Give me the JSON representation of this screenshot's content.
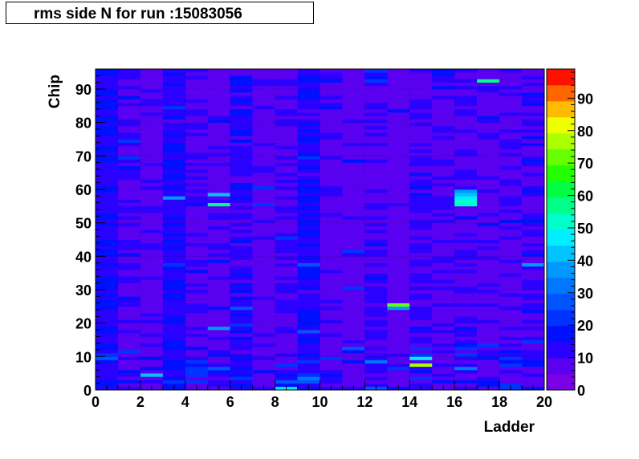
{
  "chart_data": {
    "type": "heatmap",
    "title": "rms side N for run :15083056",
    "xlabel": "Ladder",
    "ylabel": "Chip",
    "xlim": [
      0,
      20
    ],
    "ylim": [
      0,
      96
    ],
    "x_ticks": [
      0,
      2,
      4,
      6,
      8,
      10,
      12,
      14,
      16,
      18,
      20
    ],
    "y_ticks": [
      0,
      10,
      20,
      30,
      40,
      50,
      60,
      70,
      80,
      90
    ],
    "z_range": [
      0,
      99
    ],
    "z_ticks": [
      0,
      10,
      20,
      30,
      40,
      50,
      60,
      70,
      80,
      90
    ],
    "colorbar": "right",
    "grid": true,
    "n_columns": 20,
    "n_rows": 96,
    "typical_value_range": [
      5,
      20
    ],
    "notable_cells": [
      {
        "ladder": 13,
        "chip": 25,
        "value": 70
      },
      {
        "ladder": 14,
        "chip": 7,
        "value": 75
      },
      {
        "ladder": 14,
        "chip": 9,
        "value": 45
      },
      {
        "ladder": 16,
        "chip": 55,
        "value": 50
      },
      {
        "ladder": 16,
        "chip": 56,
        "value": 50
      },
      {
        "ladder": 16,
        "chip": 57,
        "value": 48
      },
      {
        "ladder": 16,
        "chip": 58,
        "value": 40
      },
      {
        "ladder": 16,
        "chip": 59,
        "value": 35
      },
      {
        "ladder": 17,
        "chip": 92,
        "value": 55
      },
      {
        "ladder": 5,
        "chip": 55,
        "value": 55
      },
      {
        "ladder": 5,
        "chip": 58,
        "value": 40
      },
      {
        "ladder": 3,
        "chip": 57,
        "value": 38
      },
      {
        "ladder": 2,
        "chip": 4,
        "value": 40
      },
      {
        "ladder": 8,
        "chip": 0,
        "value": 45
      },
      {
        "ladder": 13,
        "chip": 24,
        "value": 35
      },
      {
        "ladder": 16,
        "chip": 6,
        "value": 30
      },
      {
        "ladder": 5,
        "chip": 18,
        "value": 35
      },
      {
        "ladder": 19,
        "chip": 37,
        "value": 35
      }
    ]
  }
}
